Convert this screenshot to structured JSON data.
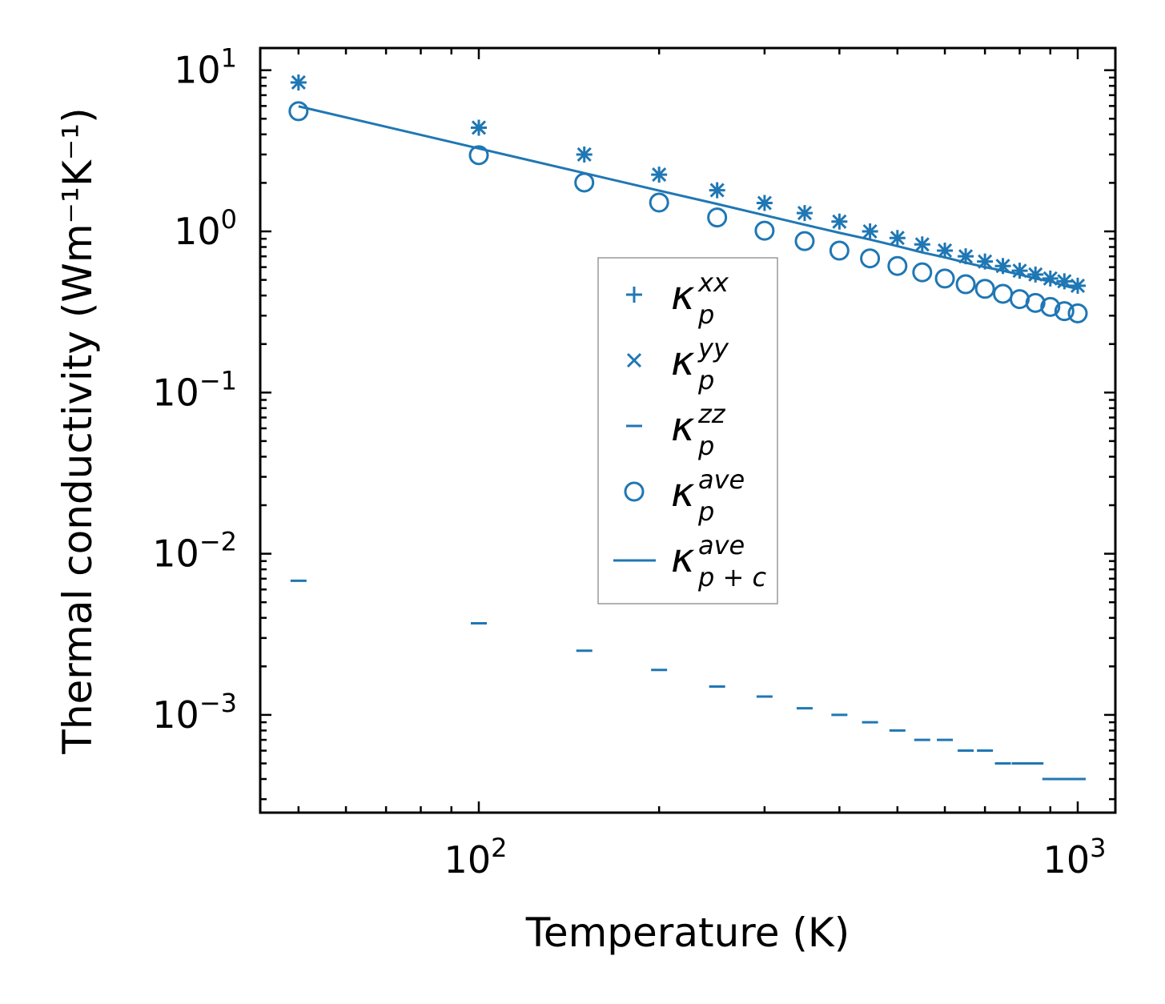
{
  "chart_data": {
    "type": "scatter",
    "title": "",
    "xlabel": "Temperature (K)",
    "ylabel": "Thermal conductivity (Wm⁻¹K⁻¹)",
    "xscale": "log",
    "yscale": "log",
    "xlim": [
      43,
      1156
    ],
    "ylim": [
      0.00025,
      13.8
    ],
    "grid": false,
    "legend_placement": "center",
    "x_ticks": [
      {
        "value": 100,
        "base": "10",
        "exp": "2"
      },
      {
        "value": 1000,
        "base": "10",
        "exp": "3"
      }
    ],
    "y_ticks": [
      {
        "value": 10,
        "base": "10",
        "exp": "1"
      },
      {
        "value": 1,
        "base": "10",
        "exp": "0"
      },
      {
        "value": 0.1,
        "base": "10",
        "exp": "−1"
      },
      {
        "value": 0.01,
        "base": "10",
        "exp": "−2"
      },
      {
        "value": 0.001,
        "base": "10",
        "exp": "−3"
      }
    ],
    "color": "#1f77b4",
    "x": [
      50,
      100,
      150,
      200,
      250,
      300,
      350,
      400,
      450,
      500,
      550,
      600,
      650,
      700,
      750,
      800,
      850,
      900,
      950,
      1000
    ],
    "series": [
      {
        "name": "κ_p^xx",
        "marker": "plus",
        "kappa": "κ",
        "sub": "p",
        "sup": "xx",
        "values": [
          8.4,
          4.4,
          3.0,
          2.25,
          1.8,
          1.5,
          1.3,
          1.15,
          1.0,
          0.91,
          0.83,
          0.76,
          0.7,
          0.65,
          0.61,
          0.57,
          0.54,
          0.51,
          0.49,
          0.46
        ]
      },
      {
        "name": "κ_p^yy",
        "marker": "x",
        "kappa": "κ",
        "sub": "p",
        "sup": "yy",
        "values": [
          8.4,
          4.4,
          3.0,
          2.25,
          1.8,
          1.5,
          1.3,
          1.15,
          1.0,
          0.91,
          0.83,
          0.76,
          0.7,
          0.65,
          0.61,
          0.57,
          0.54,
          0.51,
          0.49,
          0.46
        ]
      },
      {
        "name": "κ_p^zz",
        "marker": "hline",
        "kappa": "κ",
        "sub": "p",
        "sup": "zz",
        "values": [
          0.0068,
          0.0037,
          0.0025,
          0.0019,
          0.0015,
          0.0013,
          0.0011,
          0.001,
          0.0009,
          0.0008,
          0.0007,
          0.0007,
          0.0006,
          0.0006,
          0.0005,
          0.0005,
          0.0005,
          0.0004,
          0.0004,
          0.0004
        ]
      },
      {
        "name": "κ_p^ave",
        "marker": "circle",
        "kappa": "κ",
        "sub": "p",
        "sup": "ave",
        "values": [
          5.57,
          2.97,
          2.01,
          1.51,
          1.22,
          1.01,
          0.87,
          0.76,
          0.68,
          0.61,
          0.557,
          0.51,
          0.47,
          0.44,
          0.41,
          0.38,
          0.36,
          0.34,
          0.32,
          0.31
        ]
      },
      {
        "name": "κ_p+c^ave",
        "marker": "line",
        "kappa": "κ",
        "sub": "p + c",
        "sup": "ave",
        "values": [
          5.97,
          3.27,
          2.3,
          1.79,
          1.48,
          1.26,
          1.1,
          0.98,
          0.89,
          0.81,
          0.74,
          0.69,
          0.64,
          0.6,
          0.57,
          0.54,
          0.51,
          0.49,
          0.46,
          0.44
        ]
      }
    ]
  }
}
